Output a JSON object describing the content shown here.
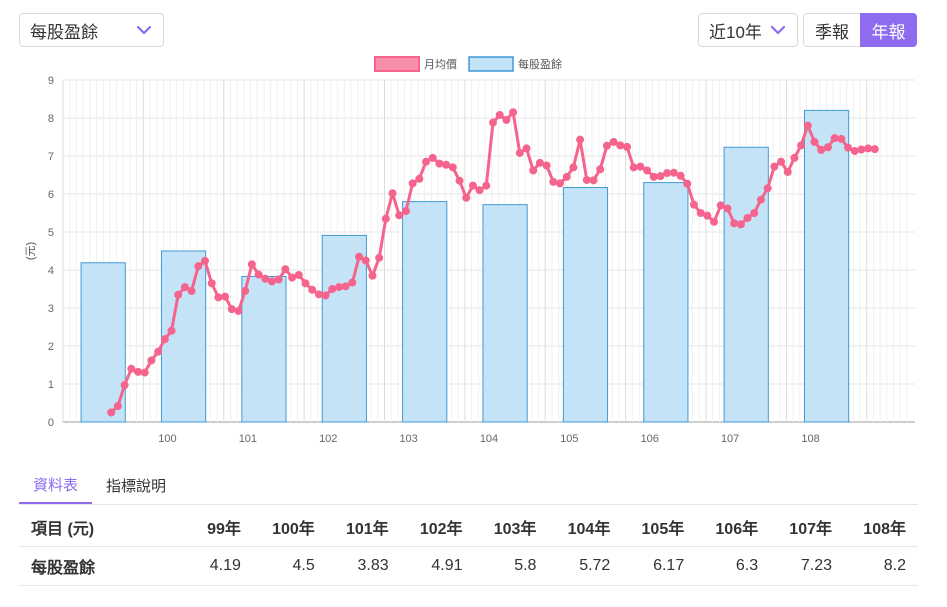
{
  "controls": {
    "metric_select": "每股盈餘",
    "range_select": "近10年",
    "period_buttons": [
      "季報",
      "年報"
    ],
    "active_period": "年報",
    "accent": "#8e6bef"
  },
  "tabs": [
    "資料表",
    "指標說明"
  ],
  "table": {
    "header_label": "項目 (元)",
    "columns": [
      "99年",
      "100年",
      "101年",
      "102年",
      "103年",
      "104年",
      "105年",
      "106年",
      "107年",
      "108年"
    ],
    "rows": [
      {
        "label": "每股盈餘",
        "values": [
          "4.19",
          "4.5",
          "3.83",
          "4.91",
          "5.8",
          "5.72",
          "6.17",
          "6.3",
          "7.23",
          "8.2"
        ]
      }
    ]
  },
  "chart_data": {
    "type": "bar",
    "ylabel": "(元)",
    "ylim": [
      0,
      9
    ],
    "yticks": [
      "0",
      "1",
      "2",
      "3",
      "4",
      "5",
      "6",
      "7",
      "8",
      "9"
    ],
    "x_tick_labels": [
      "100",
      "101",
      "102",
      "103",
      "104",
      "105",
      "106",
      "107",
      "108"
    ],
    "legend": {
      "position": "top-center",
      "entries": [
        "月均價",
        "每股盈餘"
      ]
    },
    "colors": {
      "price_line": "#f5648c",
      "bar_fill": "#c5e3f7",
      "bar_stroke": "#3f9ad8",
      "grid": "#e5e5e5"
    },
    "series": [
      {
        "name": "每股盈餘",
        "type": "bar",
        "categories": [
          "99",
          "100",
          "101",
          "102",
          "103",
          "104",
          "105",
          "106",
          "107",
          "108"
        ],
        "values": [
          4.19,
          4.5,
          3.83,
          4.91,
          5.8,
          5.72,
          6.17,
          6.3,
          7.23,
          8.2
        ]
      },
      {
        "name": "月均價",
        "type": "line",
        "x_start": "99年5月",
        "x_step": "1個月",
        "values": [
          0.25,
          0.42,
          0.97,
          1.4,
          1.32,
          1.3,
          1.62,
          1.85,
          2.18,
          2.4,
          3.35,
          3.55,
          3.45,
          4.1,
          4.24,
          3.65,
          3.28,
          3.3,
          2.97,
          2.92,
          3.45,
          4.15,
          3.88,
          3.77,
          3.7,
          3.75,
          4.02,
          3.8,
          3.87,
          3.65,
          3.48,
          3.36,
          3.33,
          3.5,
          3.55,
          3.57,
          3.67,
          4.35,
          4.25,
          3.85,
          4.32,
          5.35,
          6.02,
          5.44,
          5.55,
          6.28,
          6.4,
          6.85,
          6.95,
          6.8,
          6.77,
          6.7,
          6.35,
          5.9,
          6.22,
          6.1,
          6.22,
          7.88,
          8.08,
          7.95,
          8.15,
          7.08,
          7.2,
          6.62,
          6.82,
          6.75,
          6.32,
          6.28,
          6.45,
          6.7,
          7.43,
          6.37,
          6.36,
          6.65,
          7.27,
          7.37,
          7.28,
          7.24,
          6.7,
          6.72,
          6.62,
          6.45,
          6.47,
          6.55,
          6.56,
          6.48,
          6.27,
          5.72,
          5.5,
          5.43,
          5.27,
          5.7,
          5.62,
          5.23,
          5.2,
          5.37,
          5.5,
          5.85,
          6.15,
          6.72,
          6.85,
          6.58,
          6.95,
          7.28,
          7.8,
          7.37,
          7.16,
          7.23,
          7.47,
          7.45,
          7.22,
          7.13,
          7.17,
          7.2,
          7.18
        ]
      }
    ]
  }
}
